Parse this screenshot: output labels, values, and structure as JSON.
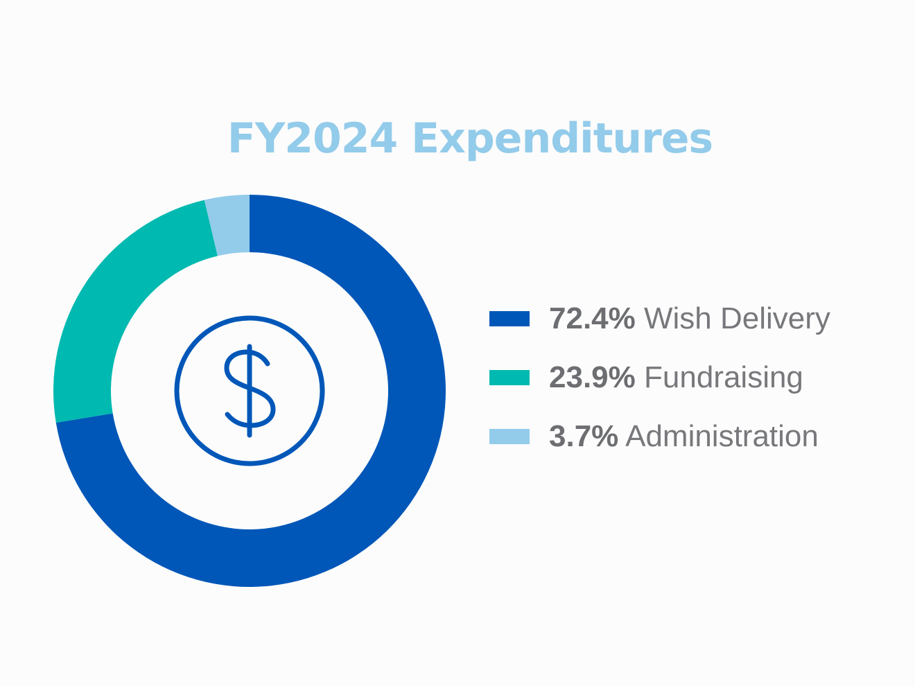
{
  "title": "FY2024 Expenditures",
  "colors": {
    "title": "#93cbea",
    "icon": "#0057b8",
    "background": "#fcfcfc"
  },
  "icon": "dollar-circle-icon",
  "chart_data": {
    "type": "pie",
    "title": "FY2024 Expenditures",
    "donut": true,
    "start_angle": "12 o'clock, clockwise",
    "legend_position": "right",
    "series": [
      {
        "name": "Wish Delivery",
        "value": 72.4,
        "label": "72.4%",
        "color": "#0057b8"
      },
      {
        "name": "Fundraising",
        "value": 23.9,
        "label": "23.9%",
        "color": "#00b9b0"
      },
      {
        "name": "Administration",
        "value": 3.7,
        "label": "3.7%",
        "color": "#93cbea"
      }
    ]
  }
}
